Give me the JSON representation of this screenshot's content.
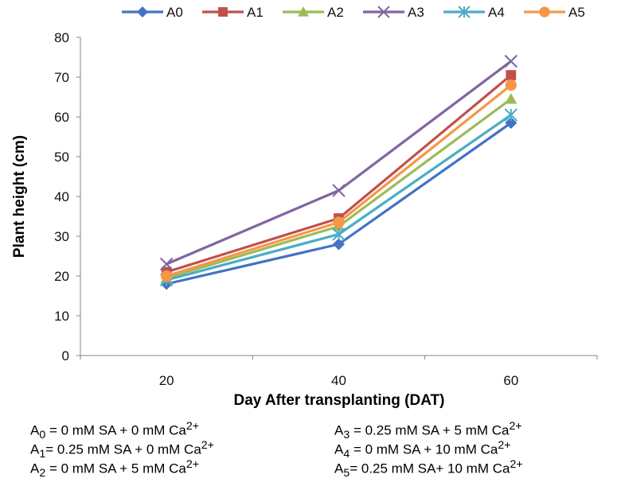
{
  "chart_data": {
    "type": "line",
    "title": "",
    "xlabel": "Day After transplanting (DAT)",
    "ylabel": "Plant height (cm)",
    "x": [
      20,
      40,
      60
    ],
    "ylim": [
      0,
      80
    ],
    "yticks": [
      0,
      10,
      20,
      30,
      40,
      50,
      60,
      70,
      80
    ],
    "grid": false,
    "legend_position": "top",
    "series": [
      {
        "name": "A0",
        "values": [
          18,
          28,
          58.5
        ],
        "color": "#4472c4",
        "marker": "diamond"
      },
      {
        "name": "A1",
        "values": [
          21,
          34.5,
          70.5
        ],
        "color": "#c0504d",
        "marker": "square"
      },
      {
        "name": "A2",
        "values": [
          19.5,
          32.5,
          64.5
        ],
        "color": "#9bbb59",
        "marker": "triangle"
      },
      {
        "name": "A3",
        "values": [
          23,
          41.5,
          74
        ],
        "color": "#8064a2",
        "marker": "x"
      },
      {
        "name": "A4",
        "values": [
          19,
          30.5,
          60.5
        ],
        "color": "#4bacc6",
        "marker": "star"
      },
      {
        "name": "A5",
        "values": [
          20,
          33.5,
          68
        ],
        "color": "#f79646",
        "marker": "circle"
      }
    ]
  },
  "notes": {
    "left": [
      {
        "label": "A",
        "sub": "0",
        "text": " = 0 mM SA + 0 mM Ca",
        "sup": "2+"
      },
      {
        "label": "A",
        "sub": "1",
        "text": "= 0.25 mM SA + 0 mM Ca",
        "sup": "2+"
      },
      {
        "label": "A",
        "sub": "2",
        "text": " = 0 mM SA + 5 mM Ca",
        "sup": "2+"
      }
    ],
    "right": [
      {
        "label": "A",
        "sub": "3",
        "text": " = 0.25 mM SA + 5 mM Ca",
        "sup": "2+"
      },
      {
        "label": "A",
        "sub": "4",
        "text": "  =  0  mM  SA  +  10  mM  Ca",
        "sup": "2+"
      },
      {
        "label": "A",
        "sub": "5",
        "text": "= 0.25 mM SA+ 10 mM Ca",
        "sup": "2+"
      }
    ]
  }
}
